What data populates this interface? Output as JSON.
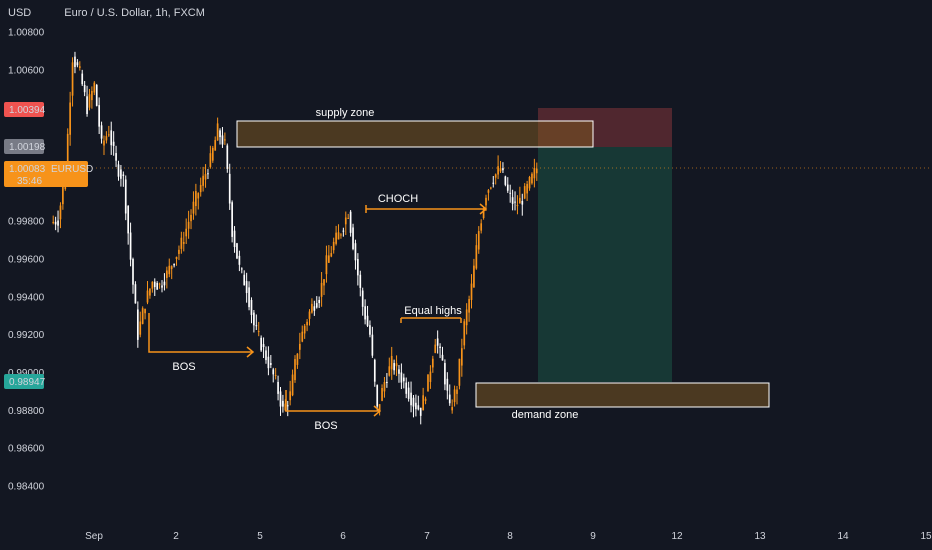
{
  "header": {
    "currency": "USD",
    "symbol_title": "Euro / U.S. Dollar, 1h, FXCM"
  },
  "colors": {
    "background": "#131722",
    "grid": "#1e222d",
    "candle_up": "#f7931a",
    "candle_down": "#ffffff",
    "annotation_arrow": "#f7931a",
    "zone_fill": "#5a3e16",
    "zone_border": "#ffffff",
    "stop_fill": "#5c2a31",
    "target_fill": "#173a37",
    "badge_stop": "#ef5350",
    "badge_entry": "#787b86",
    "badge_current": "#f7931a",
    "badge_target": "#26a69a"
  },
  "price_badges": {
    "stop": "1.00394",
    "entry": "1.00198",
    "current": "1.00083",
    "current_symbol": "EURUSD",
    "current_timer": "35:46",
    "target": "0.98947"
  },
  "chart_data": {
    "type": "candlestick",
    "title": "Euro / U.S. Dollar, 1h, FXCM",
    "y_axis_ticks": [
      "1.00800",
      "1.00600",
      "1.00400",
      "1.00200",
      "1.00000",
      "0.99800",
      "0.99600",
      "0.99400",
      "0.99200",
      "0.99000",
      "0.98800",
      "0.98600",
      "0.98400"
    ],
    "x_axis_ticks": [
      "Sep",
      "2",
      "5",
      "6",
      "7",
      "8",
      "9",
      "12",
      "13",
      "14",
      "15"
    ],
    "ylim": [
      0.9828,
      1.0092
    ],
    "grid": false,
    "price_path": [
      [
        0.9979,
        0.9981
      ],
      [
        0.9981,
        1.0005
      ],
      [
        1.0005,
        1.0067
      ],
      [
        1.0067,
        1.0058
      ],
      [
        1.0058,
        1.004
      ],
      [
        1.004,
        1.0052
      ],
      [
        1.0052,
        1.002
      ],
      [
        1.002,
        1.0028
      ],
      [
        1.0028,
        1.001
      ],
      [
        1.001,
        1.0002
      ],
      [
        1.0002,
        0.996
      ],
      [
        0.996,
        0.992
      ],
      [
        0.992,
        0.9937
      ],
      [
        0.9937,
        0.9948
      ],
      [
        0.9948,
        0.9946
      ],
      [
        0.9946,
        0.9952
      ],
      [
        0.9952,
        0.996
      ],
      [
        0.996,
        0.9968
      ],
      [
        0.9968,
        0.998
      ],
      [
        0.998,
        0.9992
      ],
      [
        0.9992,
        1.0002
      ],
      [
        1.0002,
        1.0012
      ],
      [
        1.0012,
        1.0028
      ],
      [
        1.0028,
        1.002
      ],
      [
        1.002,
        0.9975
      ],
      [
        0.9975,
        0.9955
      ],
      [
        0.9955,
        0.9945
      ],
      [
        0.9945,
        0.9925
      ],
      [
        0.9925,
        0.9915
      ],
      [
        0.9915,
        0.9905
      ],
      [
        0.9905,
        0.9895
      ],
      [
        0.9895,
        0.988
      ],
      [
        0.988,
        0.9888
      ],
      [
        0.9888,
        0.9912
      ],
      [
        0.9912,
        0.9925
      ],
      [
        0.9925,
        0.9935
      ],
      [
        0.9935,
        0.994
      ],
      [
        0.994,
        0.9958
      ],
      [
        0.9958,
        0.9968
      ],
      [
        0.9968,
        0.9975
      ],
      [
        0.9975,
        0.9985
      ],
      [
        0.9985,
        0.996
      ],
      [
        0.996,
        0.9935
      ],
      [
        0.9935,
        0.992
      ],
      [
        0.992,
        0.988
      ],
      [
        0.988,
        0.9895
      ],
      [
        0.9895,
        0.9905
      ],
      [
        0.9905,
        0.99
      ],
      [
        0.99,
        0.9892
      ],
      [
        0.9892,
        0.9884
      ],
      [
        0.9884,
        0.988
      ],
      [
        0.988,
        0.9895
      ],
      [
        0.9895,
        0.9918
      ],
      [
        0.9918,
        0.9905
      ],
      [
        0.9905,
        0.988
      ],
      [
        0.988,
        0.9893
      ],
      [
        0.9893,
        0.9925
      ],
      [
        0.9925,
        0.9945
      ],
      [
        0.9945,
        0.9975
      ],
      [
        0.9975,
        0.9995
      ],
      [
        0.9995,
        1.0003
      ],
      [
        1.0003,
        1.0008
      ],
      [
        1.0008,
        0.9995
      ],
      [
        0.9995,
        0.9988
      ],
      [
        0.9988,
        0.9992
      ],
      [
        0.9992,
        1.0
      ],
      [
        1.0,
        1.0008
      ]
    ],
    "zones": [
      {
        "name": "supply zone",
        "top": 1.00345,
        "bottom": 1.00198
      },
      {
        "name": "demand zone",
        "top": 0.9895,
        "bottom": 0.98835
      }
    ],
    "position": {
      "stop": 1.00394,
      "entry": 1.00198,
      "target": 0.98947
    },
    "annotations": [
      "supply zone",
      "CHOCH",
      "BOS",
      "BOS",
      "Equal highs",
      "demand zone"
    ]
  },
  "annotations": {
    "supply_zone": "supply zone",
    "choch": "CHOCH",
    "bos_1": "BOS",
    "bos_2": "BOS",
    "equal_highs": "Equal highs",
    "demand_zone": "demand zone"
  }
}
